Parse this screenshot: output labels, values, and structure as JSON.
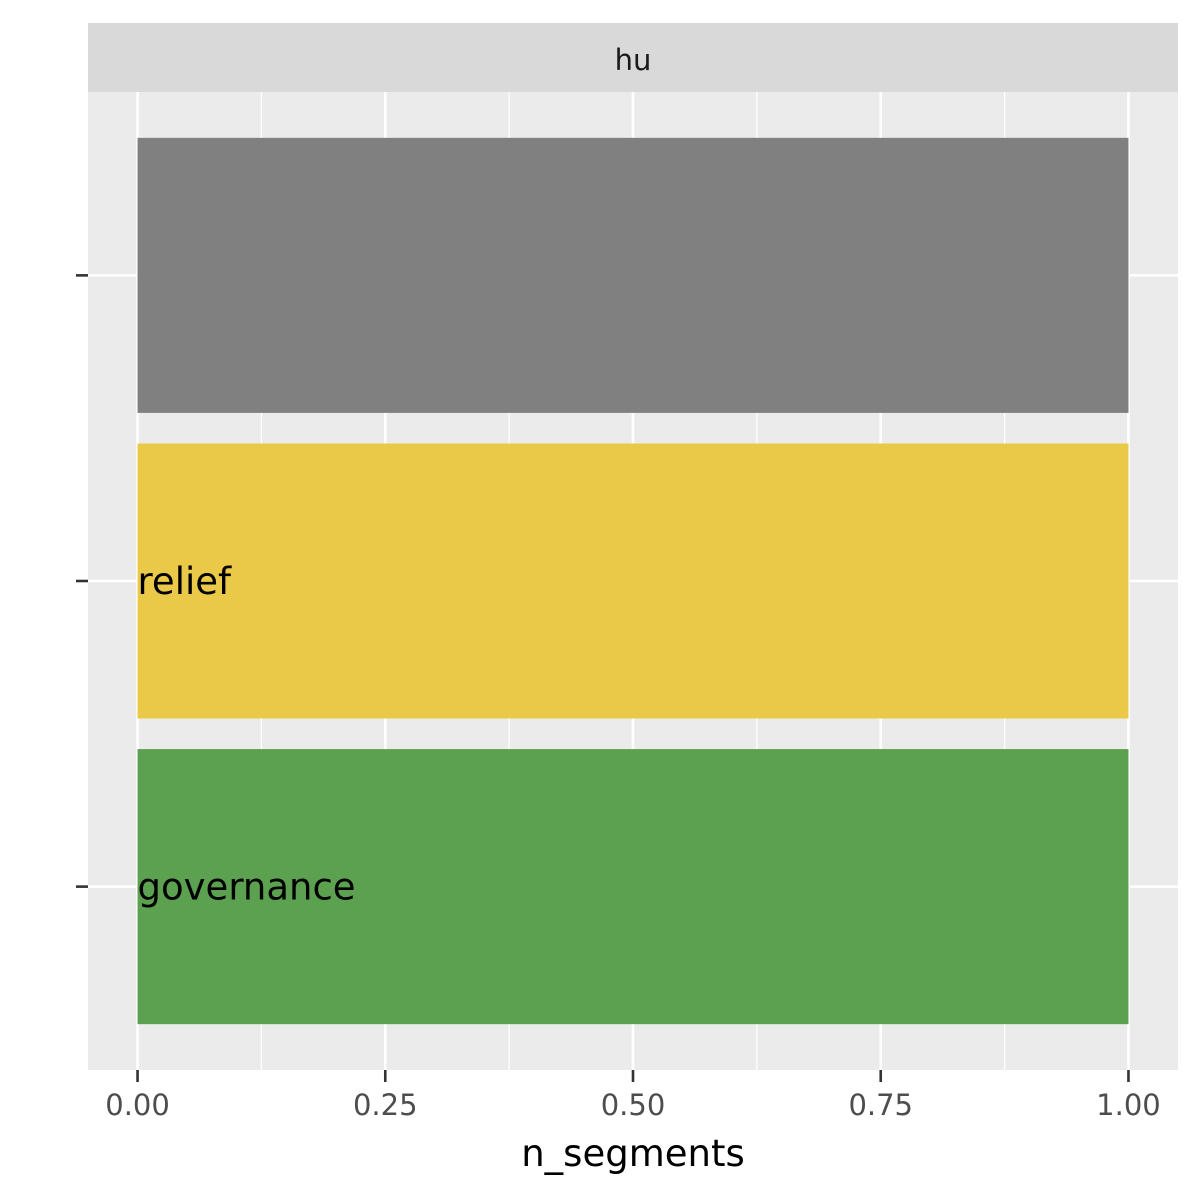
{
  "chart_data": {
    "type": "bar",
    "orientation": "horizontal",
    "facet_label": "hu",
    "xlabel": "n_segments",
    "ylabel": "",
    "xlim": [
      -0.05,
      1.05
    ],
    "x_ticks": [
      0.0,
      0.25,
      0.5,
      0.75,
      1.0
    ],
    "x_tick_labels": [
      "0.00",
      "0.25",
      "0.50",
      "0.75",
      "1.00"
    ],
    "y_tick_labels": [
      "",
      "",
      ""
    ],
    "grid": true,
    "bars": [
      {
        "label": "",
        "value": 1.0,
        "color": "#808080"
      },
      {
        "label": "relief",
        "value": 1.0,
        "color": "#EBC948"
      },
      {
        "label": "governance",
        "value": 1.0,
        "color": "#5BA150"
      }
    ]
  }
}
